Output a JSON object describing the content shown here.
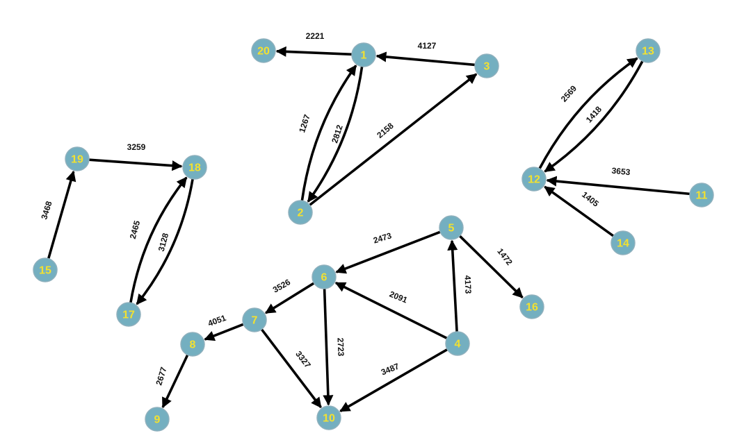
{
  "graph": {
    "directed": true,
    "node_color": "#74afc0",
    "label_color": "#f2e130",
    "edge_color": "#000000",
    "nodes": [
      {
        "id": "1"
      },
      {
        "id": "2"
      },
      {
        "id": "3"
      },
      {
        "id": "4"
      },
      {
        "id": "5"
      },
      {
        "id": "6"
      },
      {
        "id": "7"
      },
      {
        "id": "8"
      },
      {
        "id": "9"
      },
      {
        "id": "10"
      },
      {
        "id": "11"
      },
      {
        "id": "12"
      },
      {
        "id": "13"
      },
      {
        "id": "14"
      },
      {
        "id": "15"
      },
      {
        "id": "16"
      },
      {
        "id": "17"
      },
      {
        "id": "18"
      },
      {
        "id": "19"
      },
      {
        "id": "20"
      }
    ],
    "edges": [
      {
        "source": "1",
        "target": "20",
        "weight": "2221"
      },
      {
        "source": "3",
        "target": "1",
        "weight": "4127"
      },
      {
        "source": "1",
        "target": "2",
        "weight": "1267"
      },
      {
        "source": "2",
        "target": "1",
        "weight": "2812"
      },
      {
        "source": "2",
        "target": "3",
        "weight": "2158"
      },
      {
        "source": "13",
        "target": "12",
        "weight": "2569"
      },
      {
        "source": "12",
        "target": "13",
        "weight": "1418"
      },
      {
        "source": "11",
        "target": "12",
        "weight": "3653"
      },
      {
        "source": "14",
        "target": "12",
        "weight": "1405"
      },
      {
        "source": "19",
        "target": "18",
        "weight": "3259"
      },
      {
        "source": "15",
        "target": "19",
        "weight": "3468"
      },
      {
        "source": "18",
        "target": "17",
        "weight": "2465"
      },
      {
        "source": "17",
        "target": "18",
        "weight": "3128"
      },
      {
        "source": "5",
        "target": "6",
        "weight": "2473"
      },
      {
        "source": "5",
        "target": "16",
        "weight": "1472"
      },
      {
        "source": "4",
        "target": "5",
        "weight": "4173"
      },
      {
        "source": "6",
        "target": "7",
        "weight": "3526"
      },
      {
        "source": "4",
        "target": "6",
        "weight": "2091"
      },
      {
        "source": "6",
        "target": "10",
        "weight": "2723"
      },
      {
        "source": "7",
        "target": "8",
        "weight": "4051"
      },
      {
        "source": "7",
        "target": "10",
        "weight": "3327"
      },
      {
        "source": "4",
        "target": "10",
        "weight": "3487"
      },
      {
        "source": "8",
        "target": "9",
        "weight": "2677"
      }
    ]
  }
}
